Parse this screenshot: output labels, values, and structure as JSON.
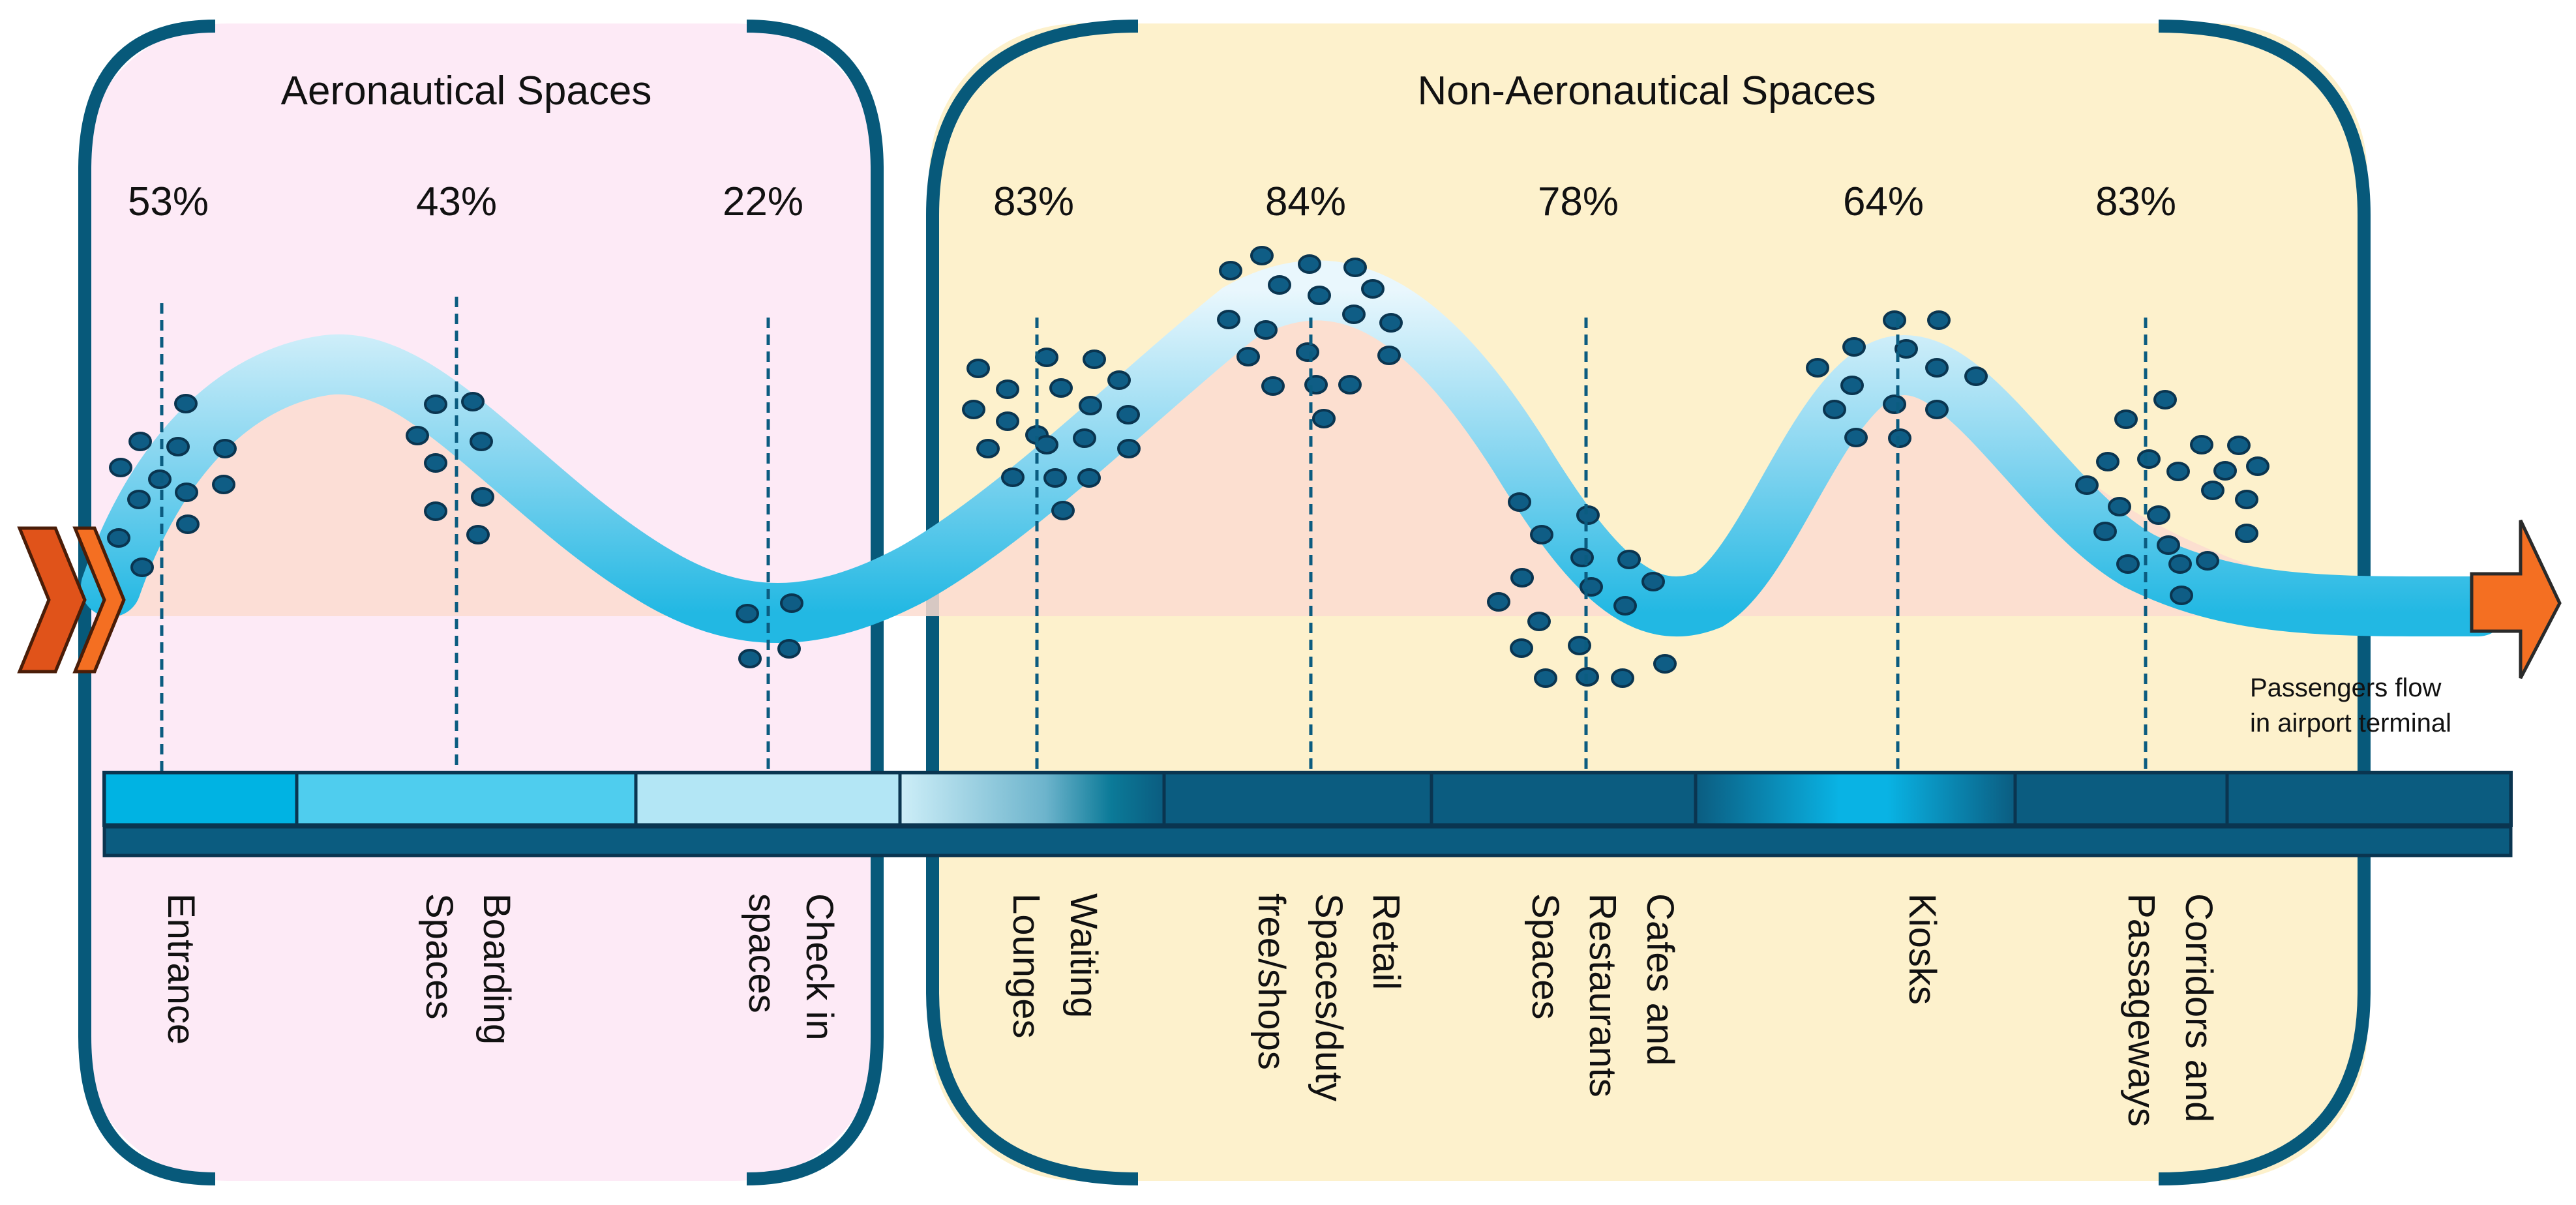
{
  "sections": {
    "aeronautical": {
      "title": "Aeronautical Spaces",
      "fill": "#fdeaf6"
    },
    "non_aeronautical": {
      "title": "Non-Aeronautical Spaces",
      "fill": "#fdf1cc"
    }
  },
  "colors": {
    "frame": "#07597a",
    "band_dark": "#0b5c80",
    "band_light": "#9fe0f4",
    "band_mid": "#22b8e3",
    "dot": "#0f5d85",
    "arrow": "#f46f22",
    "arrow_dark": "#e0531a",
    "occupancy_area": "#fbdcd0"
  },
  "chart_data": {
    "type": "area",
    "title": "Passengers flow in airport terminal",
    "categories": [
      "Entrance",
      "Boarding Spaces",
      "Check in spaces",
      "Waiting Lounges",
      "Retail Spaces/duty free/shops",
      "Cafes and Restaurants Spaces",
      "Kiosks",
      "Corridors and Passageways"
    ],
    "values": [
      53,
      43,
      22,
      83,
      84,
      78,
      64,
      83
    ],
    "value_labels": [
      "53%",
      "43%",
      "22%",
      "83%",
      "84%",
      "78%",
      "64%",
      "83%"
    ],
    "groups": [
      {
        "name": "Aeronautical Spaces",
        "categories": [
          "Entrance",
          "Boarding Spaces",
          "Check in spaces"
        ]
      },
      {
        "name": "Non-Aeronautical Spaces",
        "categories": [
          "Waiting Lounges",
          "Retail Spaces/duty free/shops",
          "Cafes and Restaurants Spaces",
          "Kiosks",
          "Corridors and Passageways"
        ]
      }
    ],
    "xlabel": "",
    "ylabel": "",
    "ylim": [
      0,
      100
    ]
  },
  "zones": [
    {
      "label_lines": [
        "Entrance"
      ],
      "pct": "53%"
    },
    {
      "label_lines": [
        "Boarding",
        "Spaces"
      ],
      "pct": "43%"
    },
    {
      "label_lines": [
        "Check in",
        "spaces"
      ],
      "pct": "22%"
    },
    {
      "label_lines": [
        "Waiting",
        "Lounges"
      ],
      "pct": "83%"
    },
    {
      "label_lines": [
        "Retail",
        "Spaces/duty",
        "free/shops"
      ],
      "pct": "84%"
    },
    {
      "label_lines": [
        "Cafes and",
        "Restaurants",
        "Spaces"
      ],
      "pct": "78%"
    },
    {
      "label_lines": [
        "Kiosks"
      ],
      "pct": "64%"
    },
    {
      "label_lines": [
        "Corridors and",
        "Passageways"
      ],
      "pct": "83%"
    }
  ],
  "flow_note": [
    "Passengers flow",
    "in airport terminal"
  ]
}
